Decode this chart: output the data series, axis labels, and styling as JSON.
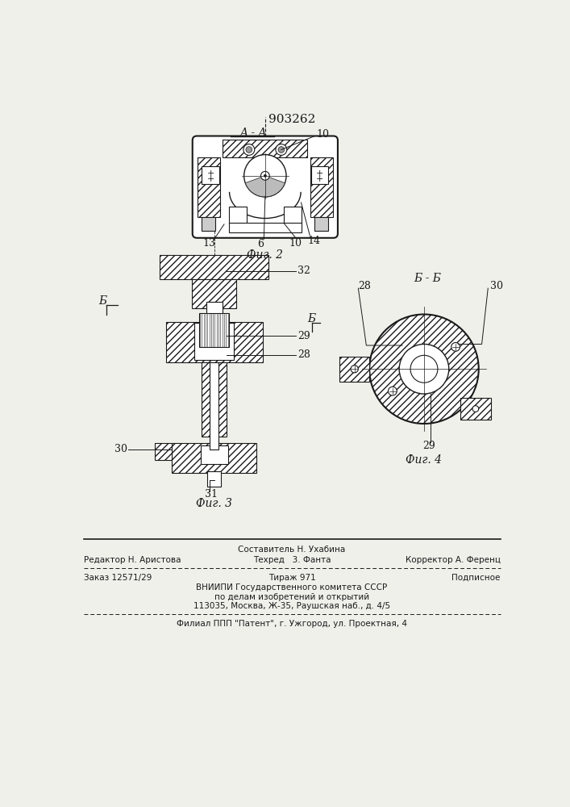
{
  "patent_number": "903262",
  "fig2_label": "Фиг. 2",
  "fig3_label": "Фиг. 3",
  "fig4_label": "Фиг. 4",
  "section_aa": "A - A",
  "section_bb": "Б - Б",
  "bg_color": "#f0f0eb",
  "line_color": "#1a1a1a",
  "footer_line1_left": "Редактор Н. Аристова",
  "footer_line1_center": "Составитель Н. Ухабина",
  "footer_line1_right": "Корректор А. Ференц",
  "footer_line2_center": "Техред   3. Фанта",
  "footer_line3_left": "Заказ 12571/29",
  "footer_line3_center": "Тираж 971",
  "footer_line3_right": "Подписное",
  "footer_line4": "ВНИИПИ Государственного комитета СССР",
  "footer_line5": "по делам изобретений и открытий",
  "footer_line6": "113035, Москва, Ж-35, Раушская наб., д. 4/5",
  "footer_line7": "Филиал ППП \"Патент\", г. Ужгород, ул. Проектная, 4"
}
